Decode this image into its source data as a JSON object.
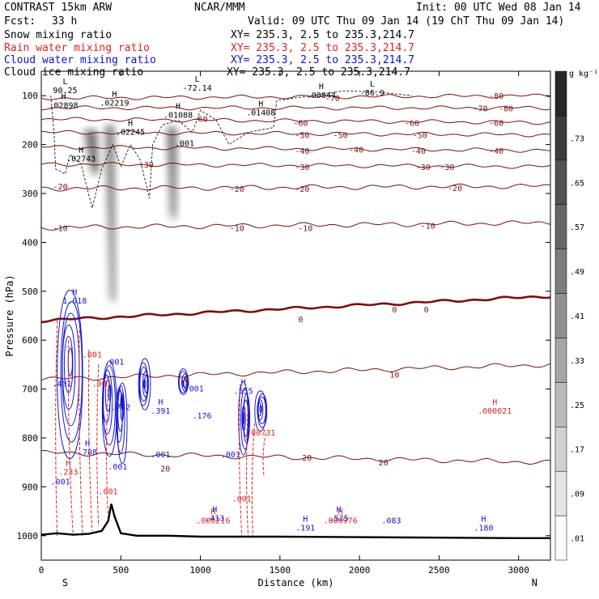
{
  "header": {
    "title": "CONTRAST 15km ARW",
    "center": "NCAR/MMM",
    "init": "Init: 00 UTC Wed 08 Jan 14",
    "fcst_label": "Fcst:",
    "fcst_value": "33 h",
    "valid": "Valid: 09 UTC Thu 09 Jan 14 (19 ChT Thu 09 Jan 14)"
  },
  "fields": [
    {
      "name": "Snow mixing ratio",
      "xy": "XY= 235.3,  2.5 to 235.3,214.7",
      "color": "#000000"
    },
    {
      "name": "Rain water mixing ratio",
      "xy": "XY= 235.3,  2.5 to 235.3,214.7",
      "color": "#e02020"
    },
    {
      "name": "Cloud water mixing ratio",
      "xy": "XY= 235.3,  2.5 to 235.3,214.7",
      "color": "#1010cc"
    },
    {
      "name": "Cloud ice mixing ratio",
      "xy": "XY= 235.3,  2.5 to 235.3,214.7",
      "color": "#000000"
    }
  ],
  "chart_data": {
    "type": "contour",
    "xlabel": "Distance (km)",
    "ylabel": "Pressure (hPa)",
    "xlim": [
      0,
      3200
    ],
    "ylim": [
      1050,
      50
    ],
    "xticks": [
      0,
      500,
      1000,
      1500,
      2000,
      2500,
      3000
    ],
    "yticks": [
      100,
      200,
      300,
      400,
      500,
      600,
      700,
      800,
      900,
      1000
    ],
    "x_end_labels": {
      "left": "S",
      "right": "N"
    },
    "colorbar": {
      "unit": "g kg⁻¹",
      "levels": [
        ".01",
        ".09",
        ".17",
        ".25",
        ".33",
        ".41",
        ".49",
        ".57",
        ".65",
        ".73"
      ]
    },
    "temperature_isotherms": [
      {
        "value": -80,
        "p_left": 105,
        "p_right": 100
      },
      {
        "value": -70,
        "p_left": 125,
        "p_right": 125
      },
      {
        "value": -60,
        "p_left": 148,
        "p_right": 155
      },
      {
        "value": -50,
        "p_left": 175,
        "p_right": 180
      },
      {
        "value": -40,
        "p_left": 205,
        "p_right": 212
      },
      {
        "value": -30,
        "p_left": 240,
        "p_right": 245
      },
      {
        "value": -20,
        "p_left": 290,
        "p_right": 285
      },
      {
        "value": -10,
        "p_left": 370,
        "p_right": 360
      },
      {
        "value": 0,
        "p_left": 560,
        "p_right": 510
      },
      {
        "value": 10,
        "p_left": 680,
        "p_right": 650
      },
      {
        "value": 20,
        "p_left": 830,
        "p_right": 850
      }
    ],
    "isotherm_labels": [
      {
        "text": "-80",
        "x": 2860,
        "p": 100
      },
      {
        "text": "-80",
        "x": 2920,
        "p": 125
      },
      {
        "text": "-70",
        "x": 1830,
        "p": 105
      },
      {
        "text": "-70",
        "x": 2760,
        "p": 125
      },
      {
        "text": "-60",
        "x": 1000,
        "p": 147
      },
      {
        "text": "-60",
        "x": 1630,
        "p": 155
      },
      {
        "text": "-60",
        "x": 2330,
        "p": 155
      },
      {
        "text": "-60",
        "x": 2860,
        "p": 155
      },
      {
        "text": "-50",
        "x": 1640,
        "p": 180
      },
      {
        "text": "-50",
        "x": 1880,
        "p": 180
      },
      {
        "text": "-50",
        "x": 2380,
        "p": 180
      },
      {
        "text": "-40",
        "x": 1640,
        "p": 212
      },
      {
        "text": "-40",
        "x": 1980,
        "p": 210
      },
      {
        "text": "-40",
        "x": 2370,
        "p": 212
      },
      {
        "text": "-40",
        "x": 2860,
        "p": 212
      },
      {
        "text": "-30",
        "x": 660,
        "p": 240
      },
      {
        "text": "-30",
        "x": 1640,
        "p": 245
      },
      {
        "text": "-30",
        "x": 2400,
        "p": 245
      },
      {
        "text": "-30",
        "x": 2550,
        "p": 245
      },
      {
        "text": "-20",
        "x": 120,
        "p": 285
      },
      {
        "text": "-20",
        "x": 1230,
        "p": 290
      },
      {
        "text": "-20",
        "x": 1640,
        "p": 290
      },
      {
        "text": "-20",
        "x": 2600,
        "p": 288
      },
      {
        "text": "-10",
        "x": 120,
        "p": 370
      },
      {
        "text": "-10",
        "x": 1230,
        "p": 370
      },
      {
        "text": "-10",
        "x": 1660,
        "p": 370
      },
      {
        "text": "-10",
        "x": 2430,
        "p": 365
      },
      {
        "text": "0",
        "x": 1630,
        "p": 557
      },
      {
        "text": "0",
        "x": 2220,
        "p": 537
      },
      {
        "text": "0",
        "x": 2420,
        "p": 537
      },
      {
        "text": "10",
        "x": 900,
        "p": 680
      },
      {
        "text": "10",
        "x": 2220,
        "p": 670
      },
      {
        "text": "20",
        "x": 780,
        "p": 862
      },
      {
        "text": "20",
        "x": 1670,
        "p": 840
      },
      {
        "text": "20",
        "x": 2150,
        "p": 850
      }
    ],
    "ice_extrema": [
      {
        "kind": "L",
        "value": "90.25",
        "x": 150,
        "p": 90
      },
      {
        "kind": "H",
        "value": ".02898",
        "x": 140,
        "p": 120
      },
      {
        "kind": "H",
        "value": ".02219",
        "x": 460,
        "p": 115
      },
      {
        "kind": "L",
        "value": "-72.14",
        "x": 980,
        "p": 85
      },
      {
        "kind": "H",
        "value": ".00044",
        "x": 1760,
        "p": 100
      },
      {
        "kind": "L",
        "value": "-86.9",
        "x": 2080,
        "p": 95
      },
      {
        "kind": "H",
        "value": ".01088",
        "x": 860,
        "p": 140
      },
      {
        "kind": "H",
        "value": ".01408",
        "x": 1380,
        "p": 135
      },
      {
        "kind": "H",
        "value": ".02245",
        "x": 560,
        "p": 175
      },
      {
        "kind": "H",
        "value": ".02743",
        "x": 250,
        "p": 230
      },
      {
        "kind": "",
        "value": ".001",
        "x": 900,
        "p": 198
      }
    ],
    "rain_extrema": [
      {
        "kind": "",
        "value": ".001",
        "x": 320,
        "p": 630
      },
      {
        "kind": "",
        "value": ".001",
        "x": 380,
        "p": 690
      },
      {
        "kind": "",
        "value": ".001",
        "x": 420,
        "p": 910
      },
      {
        "kind": "H",
        "value": ".233",
        "x": 170,
        "p": 870
      },
      {
        "kind": "",
        "value": ".00731",
        "x": 1380,
        "p": 790
      },
      {
        "kind": "",
        "value": ".001",
        "x": 1260,
        "p": 925
      },
      {
        "kind": "H",
        "value": ".000216",
        "x": 1080,
        "p": 970
      },
      {
        "kind": "H",
        "value": ".000976",
        "x": 1880,
        "p": 970
      },
      {
        "kind": "H",
        "value": ".000021",
        "x": 2850,
        "p": 745
      }
    ],
    "cloud_water_extrema": [
      {
        "kind": "H",
        "value": "1.018",
        "x": 210,
        "p": 520
      },
      {
        "kind": "",
        "value": ".401",
        "x": 130,
        "p": 690
      },
      {
        "kind": "",
        "value": ".001",
        "x": 460,
        "p": 645
      },
      {
        "kind": "",
        "value": ".762",
        "x": 500,
        "p": 738
      },
      {
        "kind": "H",
        "value": ".708",
        "x": 290,
        "p": 830
      },
      {
        "kind": "",
        "value": ".001",
        "x": 480,
        "p": 860
      },
      {
        "kind": "",
        "value": ".001",
        "x": 120,
        "p": 890
      },
      {
        "kind": "H",
        "value": ".391",
        "x": 750,
        "p": 745
      },
      {
        "kind": "",
        "value": ".001",
        "x": 750,
        "p": 835
      },
      {
        "kind": "",
        "value": ".001",
        "x": 960,
        "p": 700
      },
      {
        "kind": "",
        "value": ".176",
        "x": 1010,
        "p": 755
      },
      {
        "kind": "",
        "value": ".001",
        "x": 1190,
        "p": 835
      },
      {
        "kind": "H",
        "value": ".555",
        "x": 1270,
        "p": 705
      },
      {
        "kind": "H",
        "value": ".413",
        "x": 1090,
        "p": 965
      },
      {
        "kind": "H",
        "value": ".191",
        "x": 1660,
        "p": 985
      },
      {
        "kind": "H",
        "value": ".525",
        "x": 1870,
        "p": 965
      },
      {
        "kind": "",
        "value": ".083",
        "x": 2200,
        "p": 970
      },
      {
        "kind": "H",
        "value": ".180",
        "x": 2780,
        "p": 985
      }
    ],
    "snow_plumes": [
      {
        "x_top": 430,
        "p_top": 160,
        "x_bot": 450,
        "p_bot": 520,
        "width_km": 50
      },
      {
        "x_top": 310,
        "p_top": 170,
        "x_bot": 340,
        "p_bot": 260,
        "width_km": 80
      },
      {
        "x_top": 820,
        "p_top": 165,
        "x_bot": 830,
        "p_bot": 350,
        "width_km": 60
      }
    ],
    "cloud_water_clusters": [
      {
        "x": 180,
        "p": 640,
        "w": 160,
        "top": 440,
        "bot": 900
      },
      {
        "x": 420,
        "p": 700,
        "w": 90,
        "top": 610,
        "bot": 870
      },
      {
        "x": 500,
        "p": 720,
        "w": 60,
        "top": 660,
        "bot": 880
      },
      {
        "x": 650,
        "p": 690,
        "w": 70,
        "top": 620,
        "bot": 760
      },
      {
        "x": 900,
        "p": 690,
        "w": 60,
        "top": 650,
        "bot": 720
      },
      {
        "x": 1280,
        "p": 760,
        "w": 60,
        "top": 660,
        "bot": 860
      },
      {
        "x": 1380,
        "p": 740,
        "w": 70,
        "top": 690,
        "bot": 800
      }
    ],
    "terrain": {
      "x": [
        0,
        100,
        200,
        300,
        380,
        420,
        440,
        460,
        500,
        600,
        800,
        1000,
        1500,
        2000,
        2500,
        3000,
        3200
      ],
      "p": [
        998,
        995,
        998,
        996,
        990,
        970,
        935,
        960,
        995,
        1000,
        1000,
        1002,
        1002,
        1003,
        1004,
        1005,
        1005
      ]
    }
  }
}
